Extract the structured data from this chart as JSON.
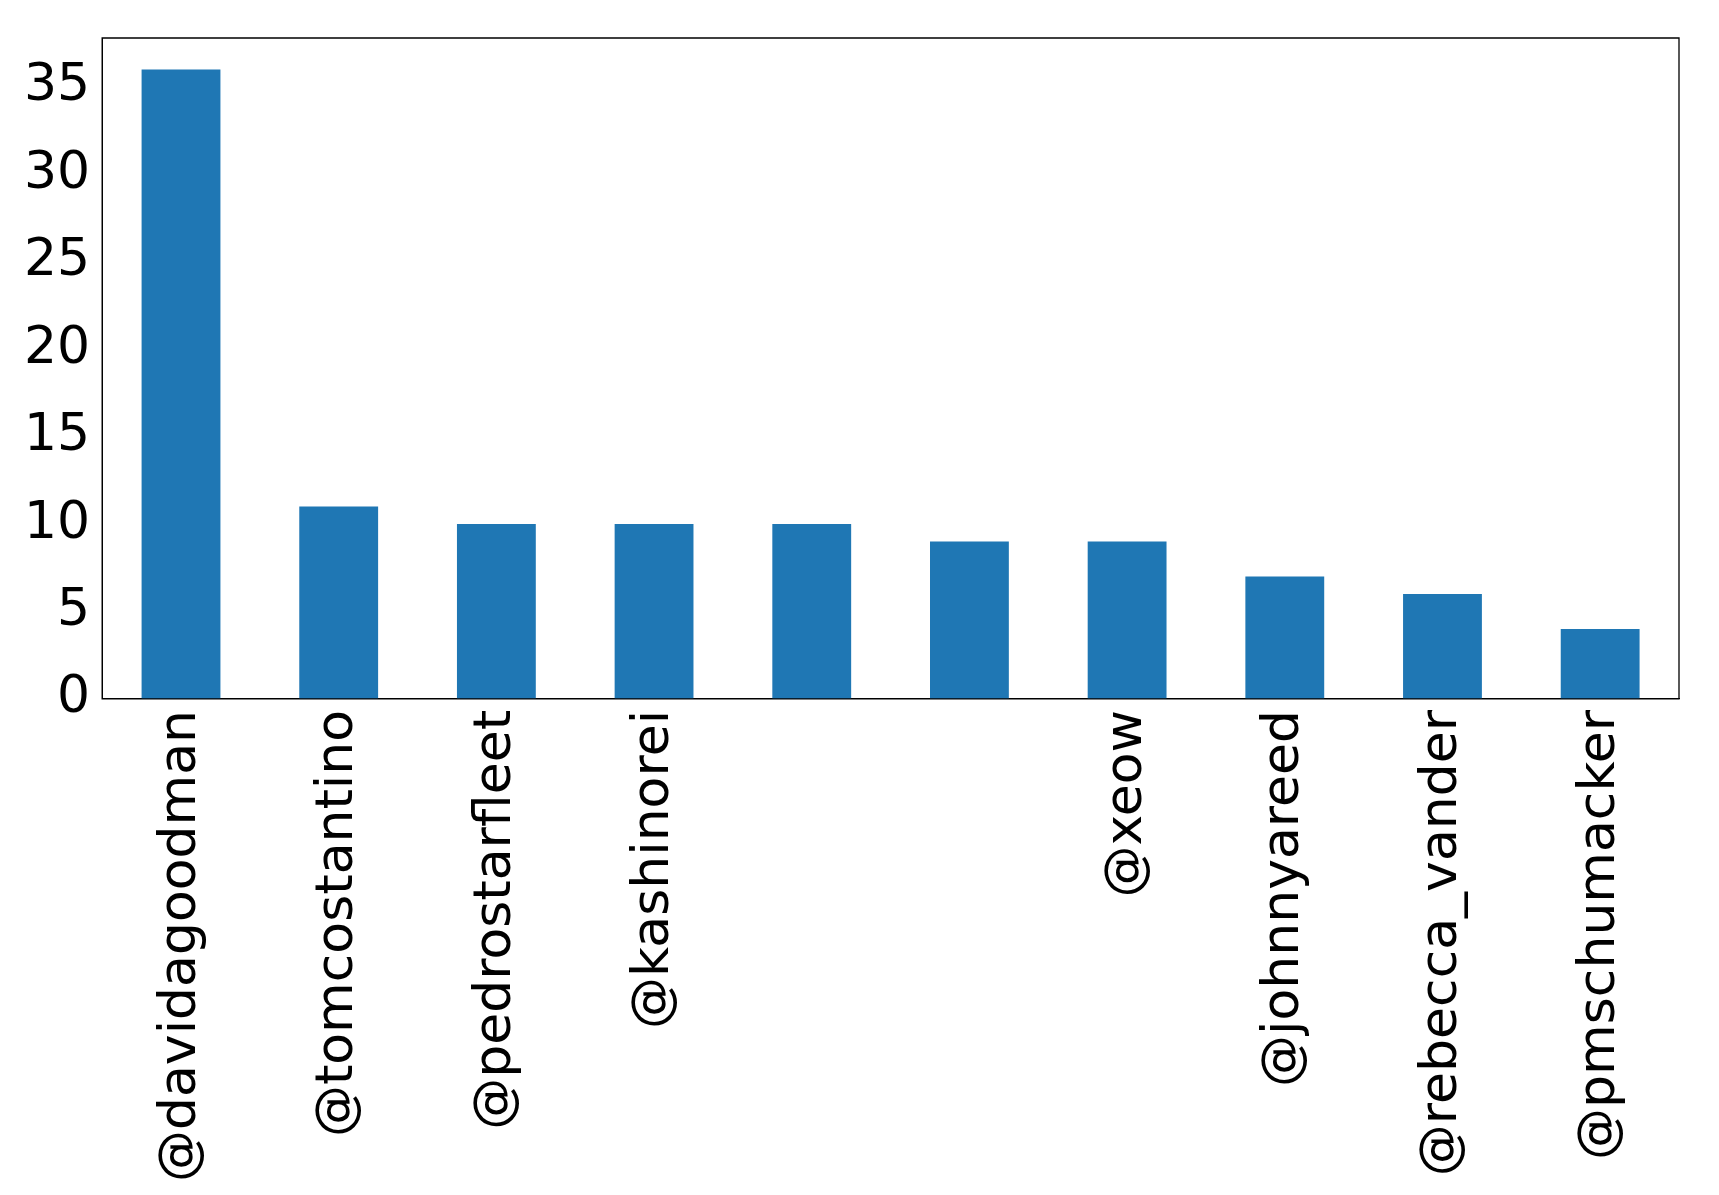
{
  "chart_data": {
    "type": "bar",
    "categories": [
      "@davidagoodman",
      "@tomcostantino",
      "@pedrostarfleet",
      "@kashinorei",
      null,
      null,
      "@xeow",
      "@johnnyareed",
      "@rebecca_vander",
      "@pmschumacker"
    ],
    "values": [
      36,
      11,
      10,
      10,
      10,
      9,
      9,
      7,
      6,
      4
    ],
    "color": "#1f77b4",
    "ylim": [
      0,
      37.8
    ],
    "yticks": [
      0,
      5,
      10,
      15,
      20,
      25,
      30,
      35
    ],
    "grid": false,
    "legend": false
  }
}
